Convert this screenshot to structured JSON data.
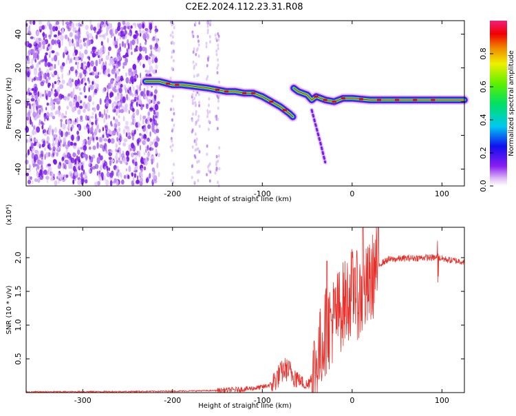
{
  "title": "C2E2.2024.112.23.31.R08",
  "colorbar": {
    "label": "Normalized spectral amplitude",
    "ticks": [
      0.0,
      0.2,
      0.4,
      0.6,
      0.8
    ],
    "range": [
      0,
      1
    ],
    "colormap": "rainbow (white-violet-blue-cyan-green-yellow-red-magenta)"
  },
  "chart_data": [
    {
      "type": "heatmap",
      "name": "spectrogram",
      "xlabel": "Height of straight line (km)",
      "ylabel": "Frequency (Hz)",
      "xlim": [
        -363,
        125
      ],
      "ylim": [
        -50,
        48
      ],
      "xticks": [
        -300,
        -200,
        -100,
        0,
        100
      ],
      "yticks": [
        -40,
        -20,
        0,
        20,
        40
      ],
      "ridge": {
        "x": [
          -230,
          -215,
          -200,
          -190,
          -175,
          -160,
          -150,
          -140,
          -130,
          -120,
          -110,
          -100,
          -90,
          -80,
          -70,
          -66
        ],
        "y": [
          12,
          12,
          10,
          10,
          9,
          8,
          7,
          6,
          6,
          5,
          5,
          3,
          0,
          -3,
          -7,
          -9
        ]
      },
      "second_ridge": {
        "x": [
          -65,
          -60,
          -50,
          -45,
          -40,
          -30,
          -20,
          -10,
          0,
          20,
          40,
          60,
          80,
          100,
          125
        ],
        "y": [
          8,
          6,
          4,
          1,
          3,
          1,
          0,
          2,
          2,
          1,
          1,
          1,
          1,
          1,
          1
        ]
      },
      "spur": {
        "x": [
          -45,
          -40,
          -35,
          -30
        ],
        "y": [
          -5,
          -15,
          -25,
          -36
        ]
      },
      "noise_region": [
        -363,
        -215
      ]
    },
    {
      "type": "line",
      "name": "snr",
      "xlabel": "Height of straight line (km)",
      "ylabel": "SNR (10 * v/v)",
      "y_multiplier": "(x10⁴)",
      "xlim": [
        -363,
        125
      ],
      "ylim": [
        0,
        2.45
      ],
      "xticks": [
        -300,
        -200,
        -100,
        0,
        100
      ],
      "yticks": [
        0.5,
        1.0,
        1.5,
        2.0
      ],
      "ytick_labels": [
        "0.5",
        "1.0",
        "1.5",
        "2.0"
      ],
      "color": "#e8302a",
      "trend": {
        "x": [
          -363,
          -250,
          -200,
          -150,
          -120,
          -100,
          -90,
          -80,
          -75,
          -70,
          -60,
          -50,
          -40,
          -30,
          -20,
          -10,
          0,
          10,
          20,
          25,
          30,
          40,
          60,
          80,
          95,
          110,
          125
        ],
        "y": [
          0.01,
          0.015,
          0.02,
          0.03,
          0.05,
          0.08,
          0.12,
          0.28,
          0.35,
          0.32,
          0.2,
          0.1,
          0.4,
          0.9,
          1.1,
          1.3,
          1.5,
          1.4,
          1.6,
          1.8,
          1.9,
          1.97,
          1.99,
          2.0,
          2.0,
          1.96,
          1.94
        ]
      },
      "peaks": [
        {
          "x": 12,
          "y": 2.45
        },
        {
          "x": 95,
          "y": 2.25
        },
        {
          "x": -28,
          "y": 1.95
        },
        {
          "x": 3,
          "y": 1.85
        }
      ]
    }
  ]
}
